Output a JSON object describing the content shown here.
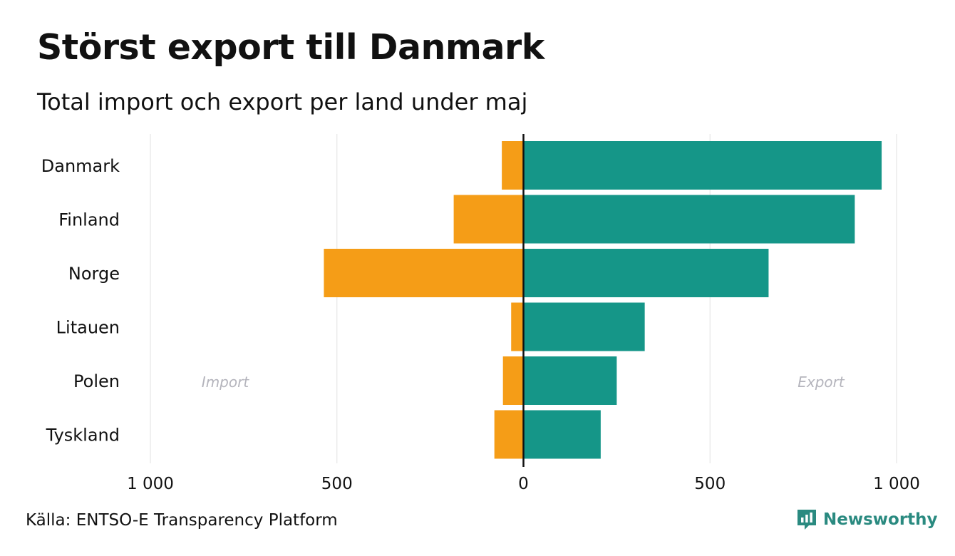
{
  "title": "Störst export till Danmark",
  "subtitle": "Total import och export per land under maj",
  "source": "Källa: ENTSO-E Transparency Platform",
  "brand": "Newsworthy",
  "chart_data": {
    "type": "bar",
    "orientation": "horizontal-diverging",
    "categories": [
      "Danmark",
      "Finland",
      "Norge",
      "Litauen",
      "Polen",
      "Tyskland"
    ],
    "series": [
      {
        "name": "Import",
        "color": "#f59d17",
        "values": [
          -58,
          -187,
          -535,
          -33,
          -55,
          -78
        ]
      },
      {
        "name": "Export",
        "color": "#159688",
        "values": [
          960,
          888,
          657,
          325,
          250,
          207
        ]
      }
    ],
    "xlim": [
      -1000,
      1000
    ],
    "x_ticks": [
      -1000,
      -500,
      0,
      500,
      1000
    ],
    "x_tick_labels": [
      "1 000",
      "500",
      "0",
      "500",
      "1 000"
    ],
    "side_labels": {
      "left": "Import",
      "right": "Export"
    },
    "grid": "vertical",
    "zero_line": true
  }
}
